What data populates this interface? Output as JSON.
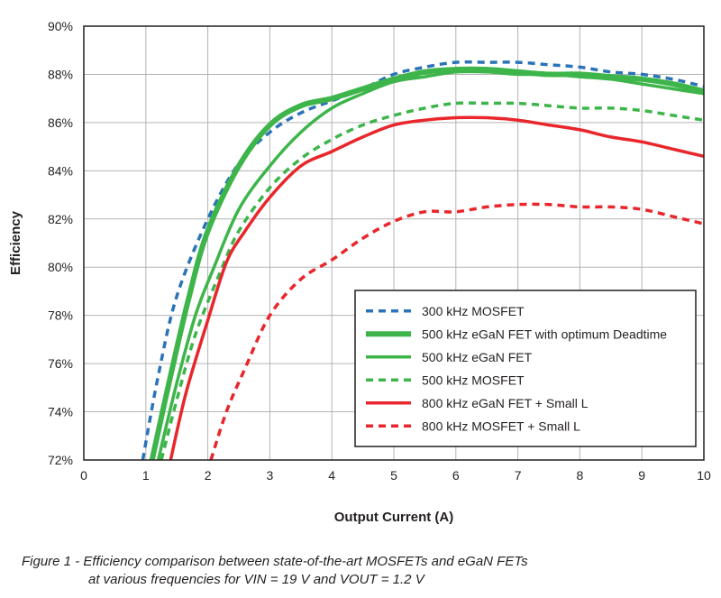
{
  "chart_data": {
    "type": "line",
    "xlabel": "Output Current (A)",
    "ylabel": "Efficiency",
    "xlim": [
      0,
      10
    ],
    "ylim": [
      72,
      90
    ],
    "x_ticks": [
      0,
      1,
      2,
      3,
      4,
      5,
      6,
      7,
      8,
      9,
      10
    ],
    "x_tick_labels": [
      "0",
      "1",
      "2",
      "3",
      "4",
      "5",
      "6",
      "7",
      "8",
      "9",
      "10"
    ],
    "y_ticks": [
      72,
      74,
      76,
      78,
      80,
      82,
      84,
      86,
      88,
      90
    ],
    "y_tick_labels": [
      "72%",
      "74%",
      "76%",
      "78%",
      "80%",
      "82%",
      "84%",
      "86%",
      "88%",
      "90%"
    ],
    "grid": true,
    "legend_position": "bottom-right",
    "series": [
      {
        "name": "300 kHz MOSFET",
        "color": "#2b73b8",
        "style": "dashed",
        "weight": "normal",
        "points": [
          [
            0.95,
            72.0
          ],
          [
            1.2,
            75.5
          ],
          [
            1.5,
            78.8
          ],
          [
            2.0,
            82.0
          ],
          [
            2.5,
            84.3
          ],
          [
            3.0,
            85.6
          ],
          [
            3.5,
            86.4
          ],
          [
            4.0,
            86.9
          ],
          [
            4.5,
            87.4
          ],
          [
            5.0,
            88.0
          ],
          [
            5.5,
            88.3
          ],
          [
            6.0,
            88.5
          ],
          [
            6.5,
            88.5
          ],
          [
            7.0,
            88.5
          ],
          [
            7.5,
            88.4
          ],
          [
            8.0,
            88.3
          ],
          [
            8.5,
            88.1
          ],
          [
            9.0,
            88.0
          ],
          [
            9.5,
            87.8
          ],
          [
            10.0,
            87.5
          ]
        ]
      },
      {
        "name": "500 kHz eGaN FET with optimum Deadtime",
        "color": "#3db54a",
        "style": "solid",
        "weight": "bold",
        "points": [
          [
            1.1,
            72.0
          ],
          [
            1.4,
            75.5
          ],
          [
            1.7,
            78.8
          ],
          [
            2.0,
            81.5
          ],
          [
            2.5,
            84.2
          ],
          [
            3.0,
            85.9
          ],
          [
            3.5,
            86.7
          ],
          [
            4.0,
            87.0
          ],
          [
            4.5,
            87.4
          ],
          [
            5.0,
            87.8
          ],
          [
            5.5,
            88.1
          ],
          [
            6.0,
            88.2
          ],
          [
            6.5,
            88.2
          ],
          [
            7.0,
            88.1
          ],
          [
            7.5,
            88.0
          ],
          [
            8.0,
            88.0
          ],
          [
            8.5,
            87.9
          ],
          [
            9.0,
            87.8
          ],
          [
            9.5,
            87.6
          ],
          [
            10.0,
            87.3
          ]
        ]
      },
      {
        "name": "500 kHz eGaN FET",
        "color": "#3db54a",
        "style": "solid",
        "weight": "normal",
        "points": [
          [
            1.2,
            72.0
          ],
          [
            1.5,
            75.2
          ],
          [
            1.8,
            78.0
          ],
          [
            2.1,
            80.0
          ],
          [
            2.5,
            82.4
          ],
          [
            3.0,
            84.2
          ],
          [
            3.5,
            85.6
          ],
          [
            4.0,
            86.6
          ],
          [
            4.5,
            87.2
          ],
          [
            5.0,
            87.7
          ],
          [
            5.5,
            87.9
          ],
          [
            6.0,
            88.1
          ],
          [
            6.5,
            88.1
          ],
          [
            7.0,
            88.0
          ],
          [
            7.5,
            88.0
          ],
          [
            8.0,
            87.9
          ],
          [
            8.5,
            87.8
          ],
          [
            9.0,
            87.6
          ],
          [
            9.5,
            87.4
          ],
          [
            10.0,
            87.2
          ]
        ]
      },
      {
        "name": "500 kHz MOSFET",
        "color": "#3db54a",
        "style": "dashed",
        "weight": "normal",
        "points": [
          [
            1.25,
            72.0
          ],
          [
            1.5,
            74.5
          ],
          [
            1.8,
            77.2
          ],
          [
            2.2,
            79.8
          ],
          [
            2.5,
            81.5
          ],
          [
            3.0,
            83.3
          ],
          [
            3.5,
            84.5
          ],
          [
            4.0,
            85.3
          ],
          [
            4.5,
            85.9
          ],
          [
            5.0,
            86.3
          ],
          [
            5.5,
            86.6
          ],
          [
            6.0,
            86.8
          ],
          [
            6.5,
            86.8
          ],
          [
            7.0,
            86.8
          ],
          [
            7.5,
            86.7
          ],
          [
            8.0,
            86.6
          ],
          [
            8.5,
            86.6
          ],
          [
            9.0,
            86.5
          ],
          [
            9.5,
            86.3
          ],
          [
            10.0,
            86.1
          ]
        ]
      },
      {
        "name": "800 kHz eGaN FET + Small L",
        "color": "#e8262b",
        "style": "solid",
        "weight": "normal",
        "points": [
          [
            1.4,
            72.0
          ],
          [
            1.65,
            74.8
          ],
          [
            2.0,
            77.8
          ],
          [
            2.3,
            80.2
          ],
          [
            2.6,
            81.5
          ],
          [
            3.0,
            82.9
          ],
          [
            3.5,
            84.2
          ],
          [
            4.0,
            84.8
          ],
          [
            4.5,
            85.4
          ],
          [
            5.0,
            85.9
          ],
          [
            5.5,
            86.1
          ],
          [
            6.0,
            86.2
          ],
          [
            6.5,
            86.2
          ],
          [
            7.0,
            86.1
          ],
          [
            7.5,
            85.9
          ],
          [
            8.0,
            85.7
          ],
          [
            8.5,
            85.4
          ],
          [
            9.0,
            85.2
          ],
          [
            9.5,
            84.9
          ],
          [
            10.0,
            84.6
          ]
        ]
      },
      {
        "name": "800 kHz MOSFET + Small L",
        "color": "#e8262b",
        "style": "dashed",
        "weight": "normal",
        "points": [
          [
            2.05,
            72.0
          ],
          [
            2.3,
            74.0
          ],
          [
            2.6,
            75.8
          ],
          [
            3.0,
            78.0
          ],
          [
            3.5,
            79.5
          ],
          [
            4.0,
            80.3
          ],
          [
            4.5,
            81.2
          ],
          [
            5.0,
            81.9
          ],
          [
            5.5,
            82.3
          ],
          [
            6.0,
            82.3
          ],
          [
            6.5,
            82.5
          ],
          [
            7.0,
            82.6
          ],
          [
            7.5,
            82.6
          ],
          [
            8.0,
            82.5
          ],
          [
            8.5,
            82.5
          ],
          [
            9.0,
            82.4
          ],
          [
            9.5,
            82.1
          ],
          [
            10.0,
            81.8
          ]
        ]
      }
    ]
  },
  "caption": {
    "line1": "Figure 1  - Efficiency comparison between state-of-the-art MOSFETs and eGaN FETs",
    "line2": "at various frequencies for VIN = 19 V and VOUT = 1.2 V"
  }
}
